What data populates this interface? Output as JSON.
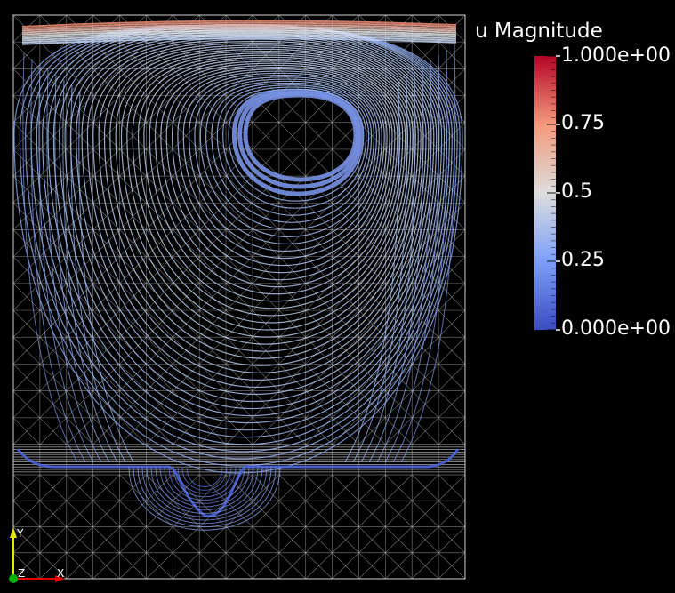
{
  "visualization": {
    "scalar_name": "u Magnitude",
    "colormap": "cool-to-warm",
    "colors": {
      "low": "#3b4cc0",
      "mid": "#dddddd",
      "high": "#b40426",
      "mesh": "#c8c8c8",
      "background": "#000000"
    }
  },
  "color_legend": {
    "title": "u Magnitude",
    "range": [
      0,
      1
    ],
    "ticks": [
      {
        "value": 1.0,
        "label": "1.000e+00"
      },
      {
        "value": 0.75,
        "label": "0.75"
      },
      {
        "value": 0.5,
        "label": "0.5"
      },
      {
        "value": 0.25,
        "label": "0.25"
      },
      {
        "value": 0.0,
        "label": "0.000e+00"
      }
    ]
  },
  "orientation_axes": {
    "y": {
      "label": "Y",
      "color": "#e6e600"
    },
    "z": {
      "label": "Z",
      "color": "#00c000"
    },
    "x": {
      "label": "X",
      "color": "#e60000"
    }
  }
}
